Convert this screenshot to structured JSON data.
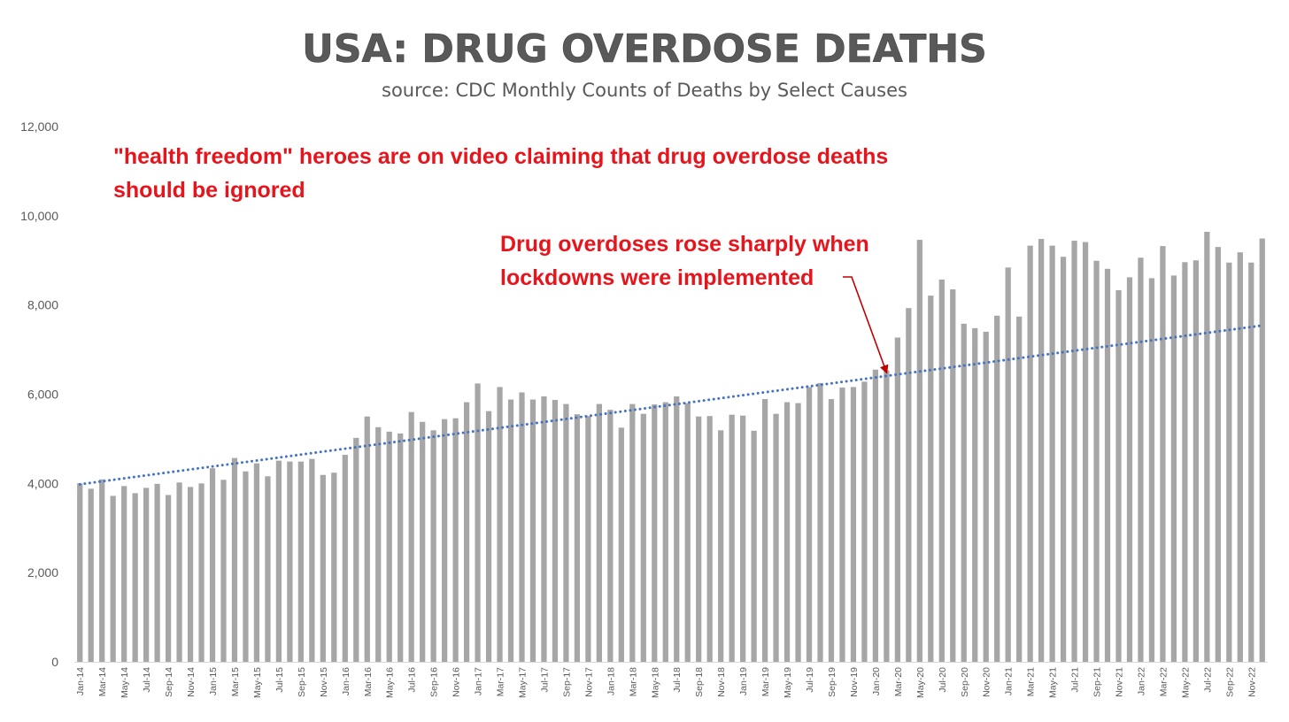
{
  "chart_data": {
    "type": "bar",
    "title": "USA: DRUG OVERDOSE DEATHS",
    "subtitle": "source: CDC Monthly Counts of Deaths by Select Causes",
    "ylim": [
      0,
      12000
    ],
    "yticks": [
      0,
      2000,
      4000,
      6000,
      8000,
      10000,
      12000
    ],
    "ytick_labels": [
      "0",
      "2,000",
      "4,000",
      "6,000",
      "8,000",
      "10,000",
      "12,000"
    ],
    "grid": false,
    "bar_color": "#a6a6a6",
    "trend_color": "#4472c4",
    "trend": {
      "start": 3980,
      "end": 7540
    },
    "categories": [
      "Jan-14",
      "Feb-14",
      "Mar-14",
      "Apr-14",
      "May-14",
      "Jun-14",
      "Jul-14",
      "Aug-14",
      "Sep-14",
      "Oct-14",
      "Nov-14",
      "Dec-14",
      "Jan-15",
      "Feb-15",
      "Mar-15",
      "Apr-15",
      "May-15",
      "Jun-15",
      "Jul-15",
      "Aug-15",
      "Sep-15",
      "Oct-15",
      "Nov-15",
      "Dec-15",
      "Jan-16",
      "Feb-16",
      "Mar-16",
      "Apr-16",
      "May-16",
      "Jun-16",
      "Jul-16",
      "Aug-16",
      "Sep-16",
      "Oct-16",
      "Nov-16",
      "Dec-16",
      "Jan-17",
      "Feb-17",
      "Mar-17",
      "Apr-17",
      "May-17",
      "Jun-17",
      "Jul-17",
      "Aug-17",
      "Sep-17",
      "Oct-17",
      "Nov-17",
      "Dec-17",
      "Jan-18",
      "Feb-18",
      "Mar-18",
      "Apr-18",
      "May-18",
      "Jun-18",
      "Jul-18",
      "Aug-18",
      "Sep-18",
      "Oct-18",
      "Nov-18",
      "Dec-18",
      "Jan-19",
      "Feb-19",
      "Mar-19",
      "Apr-19",
      "May-19",
      "Jun-19",
      "Jul-19",
      "Aug-19",
      "Sep-19",
      "Oct-19",
      "Nov-19",
      "Dec-19",
      "Jan-20",
      "Feb-20",
      "Mar-20",
      "Apr-20",
      "May-20",
      "Jun-20",
      "Jul-20",
      "Aug-20",
      "Sep-20",
      "Oct-20",
      "Nov-20",
      "Dec-20",
      "Jan-21",
      "Feb-21",
      "Mar-21",
      "Apr-21",
      "May-21",
      "Jun-21",
      "Jul-21",
      "Aug-21",
      "Sep-21",
      "Oct-21",
      "Nov-21",
      "Dec-21",
      "Jan-22",
      "Feb-22",
      "Mar-22",
      "Apr-22",
      "May-22",
      "Jun-22",
      "Jul-22",
      "Aug-22",
      "Sep-22",
      "Oct-22",
      "Nov-22",
      "Dec-22"
    ],
    "tick_labels": [
      "Jan-14",
      "Mar-14",
      "May-14",
      "Jul-14",
      "Sep-14",
      "Nov-14",
      "Jan-15",
      "Mar-15",
      "May-15",
      "Jul-15",
      "Sep-15",
      "Nov-15",
      "Jan-16",
      "Mar-16",
      "May-16",
      "Jul-16",
      "Sep-16",
      "Nov-16",
      "Jan-17",
      "Mar-17",
      "May-17",
      "Jul-17",
      "Sep-17",
      "Nov-17",
      "Jan-18",
      "Mar-18",
      "May-18",
      "Jul-18",
      "Sep-18",
      "Nov-18",
      "Jan-19",
      "Mar-19",
      "May-19",
      "Jul-19",
      "Sep-19",
      "Nov-19",
      "Jan-20",
      "Mar-20",
      "May-20",
      "Jul-20",
      "Sep-20",
      "Nov-20",
      "Jan-21",
      "Mar-21",
      "May-21",
      "Jul-21",
      "Sep-21",
      "Nov-21",
      "Jan-22",
      "Mar-22",
      "May-22",
      "Jul-22",
      "Sep-22",
      "Nov-22"
    ],
    "values": [
      4000,
      3880,
      4090,
      3720,
      3940,
      3780,
      3900,
      3990,
      3740,
      4020,
      3920,
      4000,
      4340,
      4080,
      4570,
      4270,
      4450,
      4160,
      4510,
      4490,
      4490,
      4550,
      4190,
      4240,
      4640,
      5020,
      5500,
      5260,
      5160,
      5120,
      5600,
      5380,
      5190,
      5440,
      5460,
      5820,
      6240,
      5620,
      6160,
      5880,
      6040,
      5880,
      5950,
      5870,
      5780,
      5550,
      5510,
      5780,
      5650,
      5250,
      5780,
      5560,
      5770,
      5820,
      5950,
      5800,
      5500,
      5510,
      5190,
      5540,
      5520,
      5180,
      5890,
      5560,
      5820,
      5800,
      6160,
      6250,
      5890,
      6150,
      6160,
      6280,
      6550,
      6530,
      7270,
      7930,
      9460,
      8210,
      8570,
      8350,
      7580,
      7480,
      7400,
      7760,
      8840,
      7740,
      9330,
      9480,
      9330,
      9080,
      9440,
      9410,
      8990,
      8810,
      8330,
      8620,
      9060,
      8600,
      9320,
      8660,
      8960,
      9000,
      9640,
      9300,
      8950,
      9180,
      8950,
      9490
    ]
  },
  "annotations": {
    "top_note_line1": "\"health freedom\" heroes are on video claiming that drug overdose deaths",
    "top_note_line2": "should be ignored",
    "lockdown_note_line1": "Drug overdoses rose sharply when",
    "lockdown_note_line2": "lockdowns were implemented",
    "color": "#e8141c",
    "arrow_color": "#c00000",
    "arrow_target_category": "Feb-20"
  }
}
